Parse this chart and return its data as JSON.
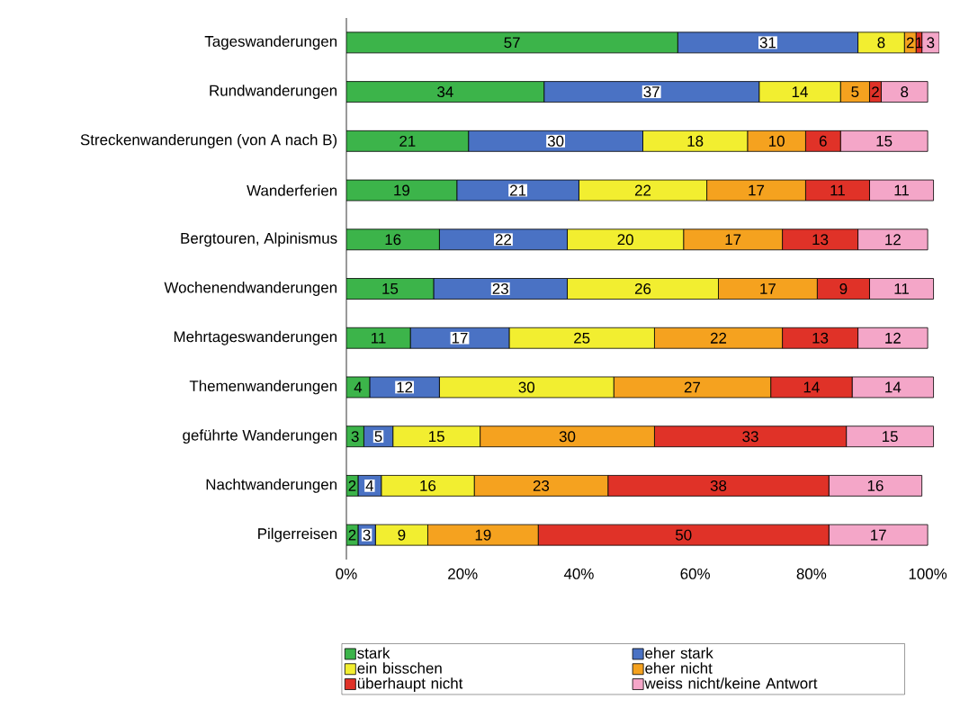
{
  "chart_data": {
    "type": "bar",
    "orientation": "horizontal",
    "stacked": true,
    "data_labels": true,
    "legend": "bottom",
    "grid": false,
    "categories": [
      "Tageswanderungen",
      "Rundwanderungen",
      "Streckenwanderungen (von A nach B)",
      "Wanderferien",
      "Bergtouren, Alpinismus",
      "Wochenendwanderungen",
      "Mehrtageswanderungen",
      "Themenwanderungen",
      "geführte Wanderungen",
      "Nachtwanderungen",
      "Pilgerreisen"
    ],
    "xlim": [
      0,
      102
    ],
    "xticks": [
      {
        "value": 0,
        "label": "0%"
      },
      {
        "value": 20,
        "label": "20%"
      },
      {
        "value": 40,
        "label": "40%"
      },
      {
        "value": 60,
        "label": "60%"
      },
      {
        "value": 80,
        "label": "80%"
      },
      {
        "value": 100,
        "label": "100%"
      }
    ],
    "series": [
      {
        "name": "stark",
        "color": "#3cb44a",
        "values": [
          57,
          34,
          21,
          19,
          16,
          15,
          11,
          4,
          3,
          2,
          2
        ]
      },
      {
        "name": "eher stark",
        "color": "#4a72c4",
        "values": [
          31,
          37,
          30,
          21,
          22,
          23,
          17,
          12,
          5,
          4,
          3
        ]
      },
      {
        "name": "ein bisschen",
        "color": "#f2ee30",
        "values": [
          8,
          14,
          18,
          22,
          20,
          26,
          25,
          30,
          15,
          16,
          9
        ]
      },
      {
        "name": "eher nicht",
        "color": "#f5a21f",
        "values": [
          2,
          5,
          10,
          17,
          17,
          17,
          22,
          27,
          30,
          23,
          19
        ]
      },
      {
        "name": "überhaupt nicht",
        "color": "#e03228",
        "values": [
          1,
          2,
          6,
          11,
          13,
          9,
          13,
          14,
          33,
          38,
          50
        ]
      },
      {
        "name": "weiss nicht/keine Antwort",
        "color": "#f4a6c8",
        "values": [
          3,
          8,
          15,
          11,
          12,
          11,
          12,
          14,
          15,
          16,
          17
        ]
      }
    ]
  }
}
